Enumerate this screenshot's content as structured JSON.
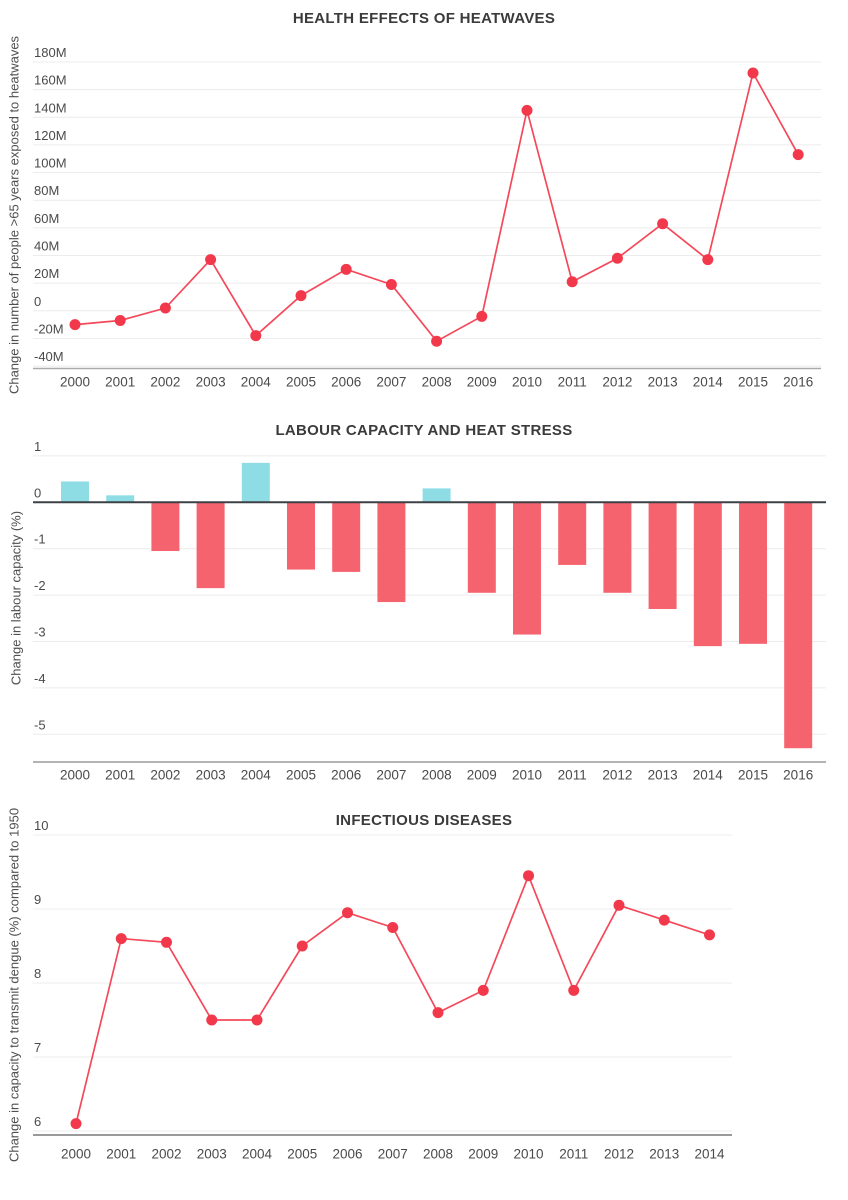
{
  "chart_data": [
    {
      "type": "line",
      "title": "HEALTH EFFECTS OF HEATWAVES",
      "ylabel": "Change in number of people >65 years exposed to heatwaves",
      "x": [
        2000,
        2001,
        2002,
        2003,
        2004,
        2005,
        2006,
        2007,
        2008,
        2009,
        2010,
        2011,
        2012,
        2013,
        2014,
        2015,
        2016
      ],
      "values": [
        -10,
        -7,
        2,
        37,
        -18,
        11,
        30,
        19,
        -22,
        -4,
        145,
        21,
        38,
        63,
        37,
        172,
        113
      ],
      "value_unit": "M",
      "yticks": [
        "180M",
        "160M",
        "140M",
        "120M",
        "100M",
        "80M",
        "60M",
        "40M",
        "20M",
        "0",
        "-20M",
        "-40M"
      ],
      "ytick_values": [
        180,
        160,
        140,
        120,
        100,
        80,
        60,
        40,
        20,
        0,
        -20,
        -40
      ],
      "ylim": [
        -40,
        180
      ],
      "grid": true,
      "legend": "none",
      "line_color": "#f4495a",
      "marker_color": "#f2394b"
    },
    {
      "type": "bar",
      "title": "LABOUR CAPACITY AND HEAT STRESS",
      "ylabel": "Change in labour capacity (%)",
      "x": [
        2000,
        2001,
        2002,
        2003,
        2004,
        2005,
        2006,
        2007,
        2008,
        2009,
        2010,
        2011,
        2012,
        2013,
        2014,
        2015,
        2016
      ],
      "values": [
        0.45,
        0.15,
        -1.05,
        -1.85,
        0.85,
        -1.45,
        -1.5,
        -2.15,
        0.3,
        -1.95,
        -2.85,
        -1.35,
        -1.95,
        -2.3,
        -3.1,
        -3.05,
        -5.3
      ],
      "yticks": [
        "1",
        "0",
        "-1",
        "-2",
        "-3",
        "-4",
        "-5"
      ],
      "ytick_values": [
        1,
        0,
        -1,
        -2,
        -3,
        -4,
        -5
      ],
      "ylim": [
        -5.6,
        1
      ],
      "grid": true,
      "legend": "none",
      "zero_line": true,
      "positive_color": "#8edde5",
      "negative_color": "#f5636f"
    },
    {
      "type": "line",
      "title": "INFECTIOUS DISEASES",
      "ylabel": "Change in capacity to transmit dengue (%) compared to 1950",
      "x": [
        2000,
        2001,
        2002,
        2003,
        2004,
        2005,
        2006,
        2007,
        2008,
        2009,
        2010,
        2011,
        2012,
        2013,
        2014
      ],
      "values": [
        6.1,
        8.6,
        8.55,
        7.5,
        7.5,
        8.5,
        8.95,
        8.75,
        7.6,
        7.9,
        9.45,
        7.9,
        9.05,
        8.85,
        8.65
      ],
      "yticks": [
        "10",
        "9",
        "8",
        "7",
        "6"
      ],
      "ytick_values": [
        10,
        9,
        8,
        7,
        6
      ],
      "ylim": [
        6,
        10
      ],
      "grid": true,
      "legend": "none",
      "line_color": "#f4495a",
      "marker_color": "#f2394b"
    }
  ]
}
